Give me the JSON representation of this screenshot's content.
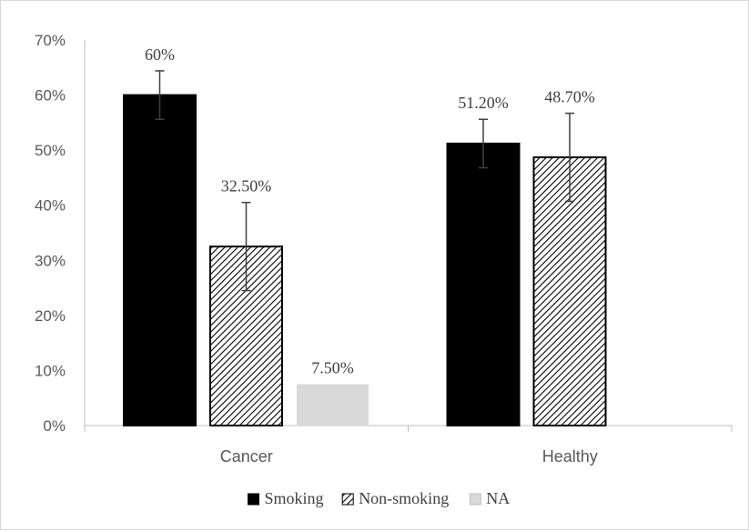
{
  "chart_data": {
    "type": "bar",
    "categories": [
      "Cancer",
      "Healthy"
    ],
    "series": [
      {
        "name": "Smoking",
        "values": [
          0.6,
          0.512
        ],
        "labels": [
          "60%",
          "51.20%"
        ],
        "error": [
          0.044,
          0.044
        ],
        "fill": "solid-black"
      },
      {
        "name": "Non-smoking",
        "values": [
          0.325,
          0.487
        ],
        "labels": [
          "32.50%",
          "48.70%"
        ],
        "error": [
          0.08,
          0.08
        ],
        "fill": "diagonal-hatch"
      },
      {
        "name": "NA",
        "values": [
          0.075,
          null
        ],
        "labels": [
          "7.50%",
          ""
        ],
        "error": [
          null,
          null
        ],
        "fill": "light-gray"
      }
    ],
    "yticks": [
      "0%",
      "10%",
      "20%",
      "30%",
      "40%",
      "50%",
      "60%",
      "70%"
    ],
    "ylim": [
      0,
      0.7
    ],
    "grid": false,
    "legend_position": "bottom",
    "colors": {
      "smoking": "#000000",
      "non_smoking_hatch": "#000000",
      "na": "#d9d9d9",
      "axis": "#bfbfbf",
      "error_bar": "#404040"
    }
  }
}
